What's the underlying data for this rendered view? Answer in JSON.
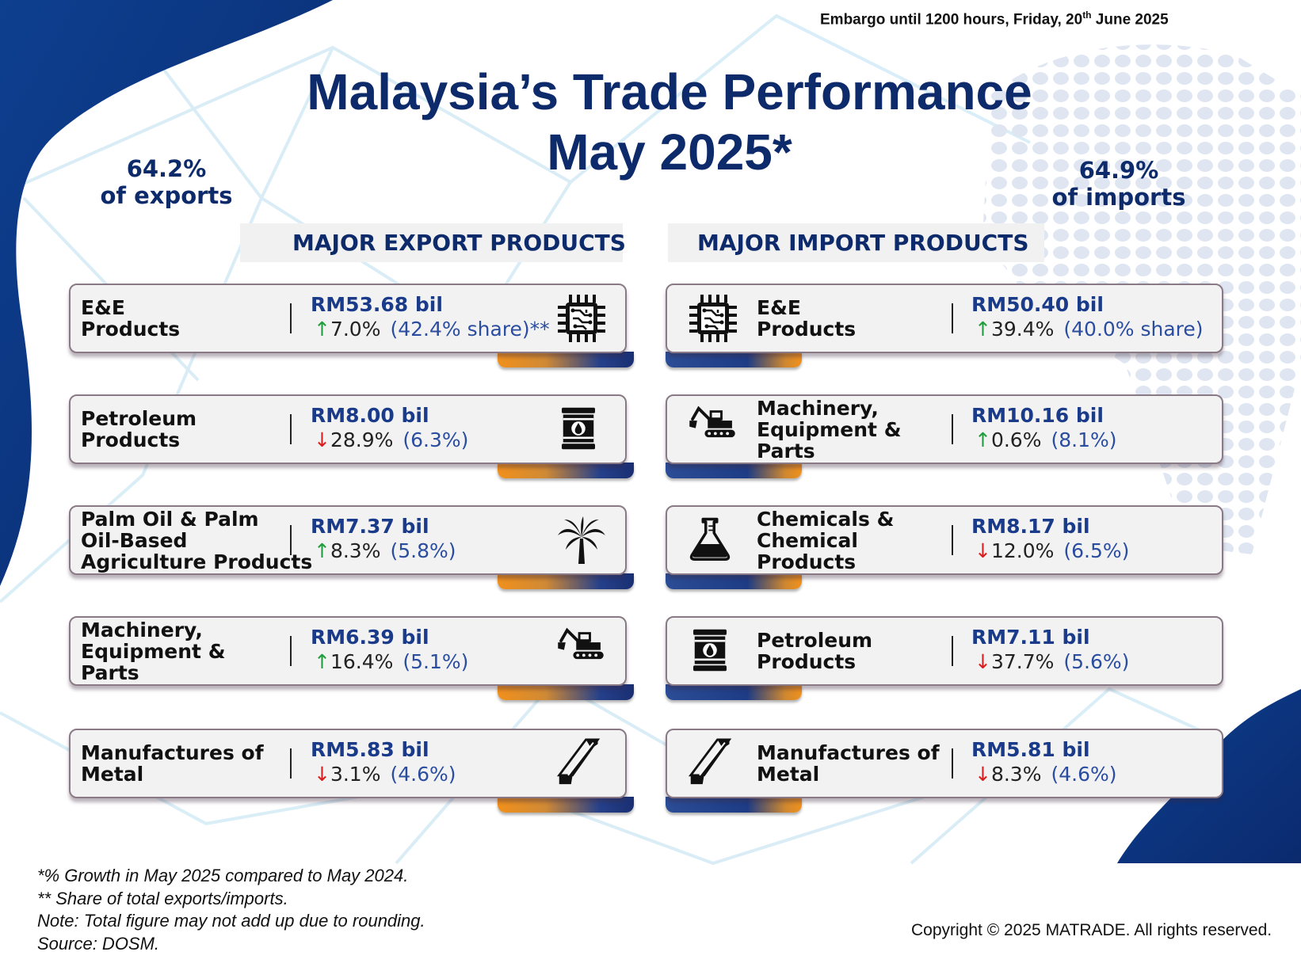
{
  "embargo": {
    "text": "Embargo until 1200 hours, Friday, 20",
    "sup": "th",
    "text_after": " June 2025"
  },
  "title": {
    "line1": "Malaysia’s Trade Performance",
    "line2": "May 2025*"
  },
  "exports_share": {
    "line1": "64.2%",
    "line2": "of exports"
  },
  "imports_share": {
    "line1": "64.9%",
    "line2": "of imports"
  },
  "export_heading": "MAJOR EXPORT PRODUCTS",
  "import_heading": "MAJOR IMPORT PRODUCTS",
  "exports": [
    {
      "name": [
        "E&E",
        "Products"
      ],
      "value": "RM53.68 bil",
      "arrow": "↑",
      "direction": "up",
      "growth": "7.0%",
      "share": "(42.4% share)**",
      "icon": "microchip-icon"
    },
    {
      "name": [
        "Petroleum",
        "Products"
      ],
      "value": "RM8.00 bil",
      "arrow": "↓",
      "direction": "down",
      "growth": "28.9%",
      "share": "(6.3%)",
      "icon": "oil-barrel-icon"
    },
    {
      "name": [
        "Palm Oil & Palm",
        "Oil-Based",
        "Agriculture Products"
      ],
      "value": "RM7.37 bil",
      "arrow": "↑",
      "direction": "up",
      "growth": "8.3%",
      "share": "(5.8%)",
      "icon": "palm-tree-icon"
    },
    {
      "name": [
        "Machinery,",
        "Equipment &",
        "Parts"
      ],
      "value": "RM6.39 bil",
      "arrow": "↑",
      "direction": "up",
      "growth": "16.4%",
      "share": "(5.1%)",
      "icon": "excavator-icon"
    },
    {
      "name": [
        "Manufactures of",
        "Metal"
      ],
      "value": "RM5.83 bil",
      "arrow": "↓",
      "direction": "down",
      "growth": "3.1%",
      "share": "(4.6%)",
      "icon": "steel-beam-icon"
    }
  ],
  "imports": [
    {
      "name": [
        "E&E",
        "Products"
      ],
      "value": "RM50.40 bil",
      "arrow": "↑",
      "direction": "up",
      "growth": "39.4%",
      "share": "(40.0% share)",
      "icon": "microchip-icon"
    },
    {
      "name": [
        "Machinery,",
        "Equipment &",
        "Parts"
      ],
      "value": "RM10.16 bil",
      "arrow": "↑",
      "direction": "up",
      "growth": "0.6%",
      "share": "(8.1%)",
      "icon": "excavator-icon"
    },
    {
      "name": [
        "Chemicals &",
        "Chemical",
        "Products"
      ],
      "value": "RM8.17 bil",
      "arrow": "↓",
      "direction": "down",
      "growth": "12.0%",
      "share": "(6.5%)",
      "icon": "flask-icon"
    },
    {
      "name": [
        "Petroleum",
        "Products"
      ],
      "value": "RM7.11 bil",
      "arrow": "↓",
      "direction": "down",
      "growth": "37.7%",
      "share": "(5.6%)",
      "icon": "oil-barrel-icon"
    },
    {
      "name": [
        "Manufactures of",
        "Metal"
      ],
      "value": "RM5.81 bil",
      "arrow": "↓",
      "direction": "down",
      "growth": "8.3%",
      "share": "(4.6%)",
      "icon": "steel-beam-icon"
    }
  ],
  "notes": [
    "*% Growth in May 2025 compared to May 2024.",
    "** Share of total exports/imports.",
    "Note: Total figure may not add up due to rounding.",
    "Source: DOSM."
  ],
  "copyright": "Copyright © 2025 MATRADE. All rights reserved.",
  "colors": {
    "navy": "#0d2a6b",
    "orange": "#f0901c",
    "up_green": "#1f9d3c",
    "down_red": "#d81f1f",
    "share_blue": "#2a4da0"
  }
}
